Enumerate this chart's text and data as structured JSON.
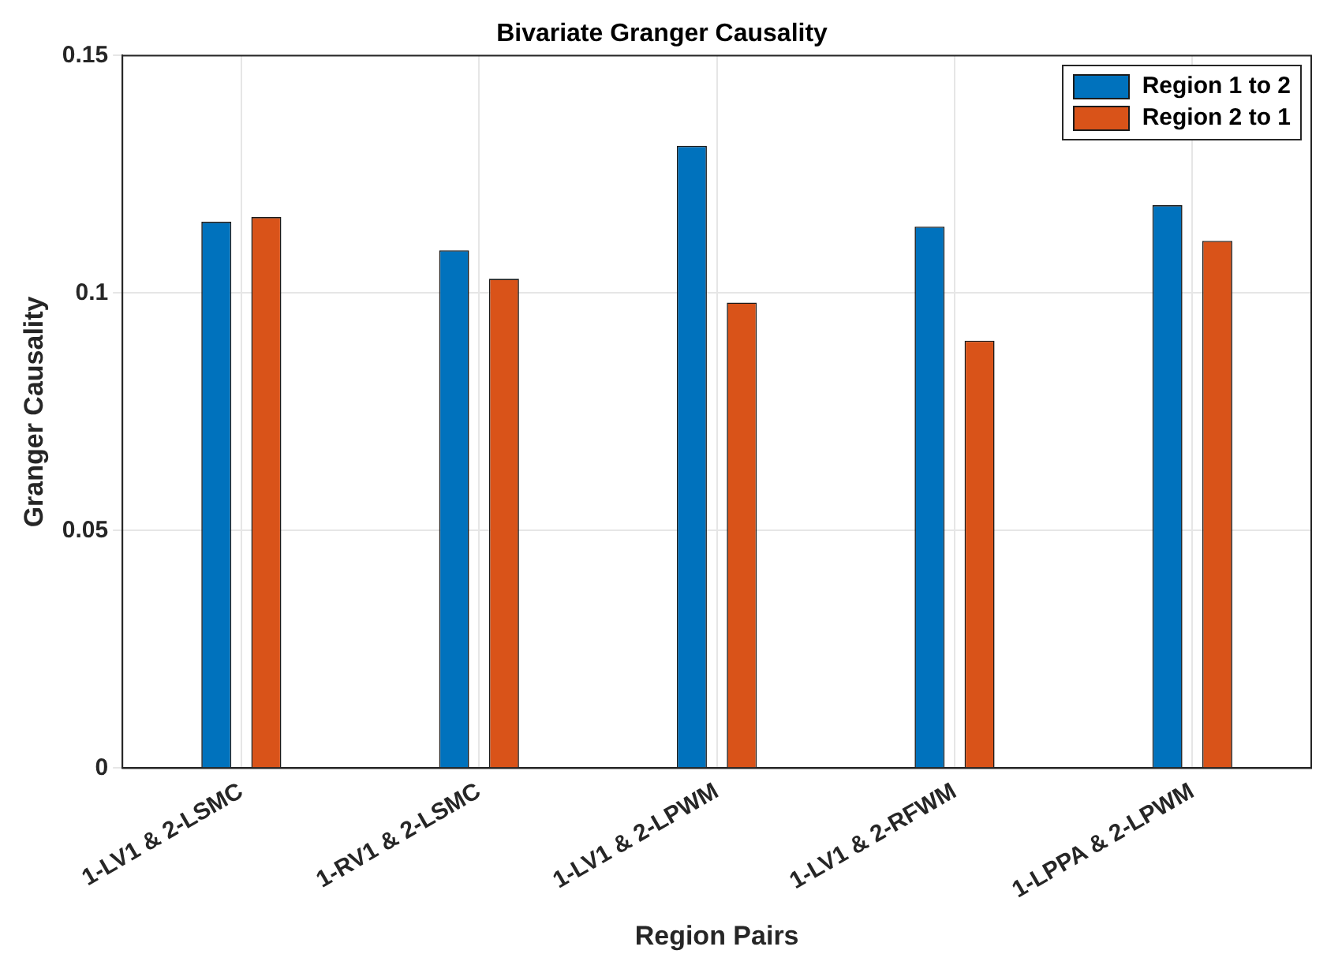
{
  "chart_data": {
    "type": "bar",
    "title": "Bivariate Granger Causality",
    "xlabel": "Region Pairs",
    "ylabel": "Granger Causality",
    "categories": [
      "1-LV1 & 2-LSMC",
      "1-RV1 & 2-LSMC",
      "1-LV1 & 2-LPWM",
      "1-LV1 & 2-RFWM",
      "1-LPPA & 2-LPWM"
    ],
    "series": [
      {
        "name": "Region 1 to 2",
        "color": "#0072bd",
        "values": [
          0.115,
          0.109,
          0.131,
          0.114,
          0.1185
        ]
      },
      {
        "name": "Region 2 to 1",
        "color": "#d95319",
        "values": [
          0.116,
          0.103,
          0.098,
          0.09,
          0.111
        ]
      }
    ],
    "ylim": [
      0,
      0.15
    ],
    "yticks": [
      0,
      0.05,
      0.1,
      0.15
    ],
    "grid": true,
    "legend": "top right"
  }
}
